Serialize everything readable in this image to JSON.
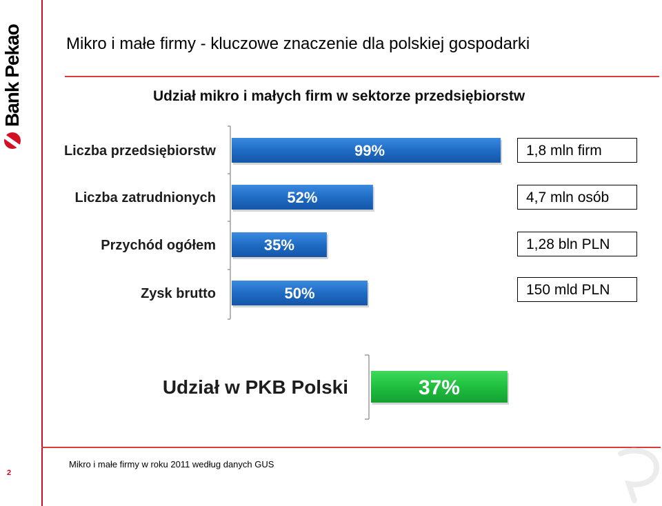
{
  "brand": {
    "name": "Bank Pekao",
    "color": "#d50f25",
    "icon": "bank-pekao-logo-icon"
  },
  "slide": {
    "title": "Mikro i małe firmy - kluczowe znaczenie dla polskiej gospodarki",
    "page_number": "2",
    "source": "Mikro i małe firmy w roku 2011 według  danych GUS"
  },
  "chart_data": [
    {
      "type": "bar",
      "orientation": "horizontal",
      "title": "Udział mikro i małych firm w sektorze przedsiębiorstw",
      "categories": [
        "Liczba przedsiębiorstw",
        "Liczba zatrudnionych",
        "Przychód ogółem",
        "Zysk brutto"
      ],
      "values": [
        99,
        52,
        35,
        50
      ],
      "value_labels": [
        "99%",
        "52%",
        "35%",
        "50%"
      ],
      "unit": "%",
      "xlim": [
        0,
        100
      ],
      "color": "#1f6cc4",
      "annotations": [
        "1,8 mln firm",
        "4,7 mln osób",
        "1,28 bln PLN",
        "150 mld PLN"
      ]
    },
    {
      "type": "bar",
      "orientation": "horizontal",
      "categories": [
        "Udział w PKB Polski"
      ],
      "values": [
        37
      ],
      "value_labels": [
        "37%"
      ],
      "unit": "%",
      "xlim": [
        0,
        100
      ],
      "color": "#1fbf3f"
    }
  ]
}
